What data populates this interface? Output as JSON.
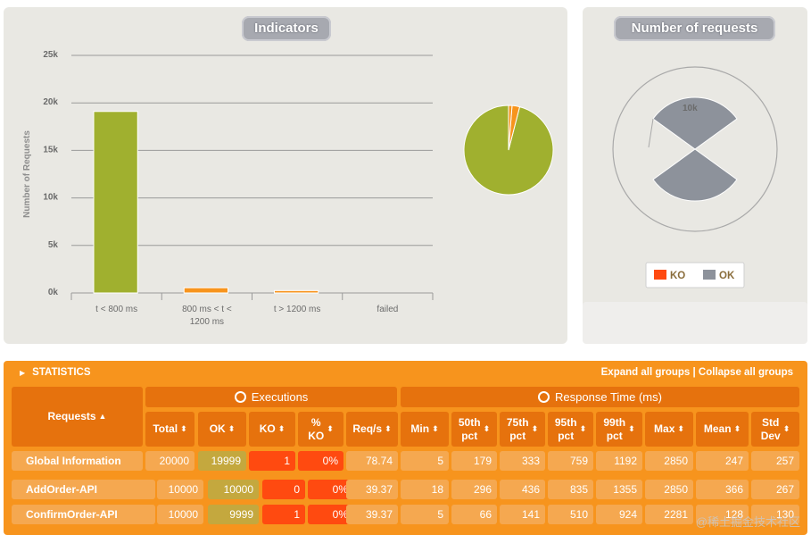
{
  "indicators": {
    "title": "Indicators",
    "chart_data": {
      "type": "bar",
      "ylabel": "Number of Requests",
      "yticks": [
        "0k",
        "5k",
        "10k",
        "15k",
        "20k",
        "25k"
      ],
      "ylim": [
        0,
        25000
      ],
      "categories": [
        "t < 800 ms",
        "800 ms < t < 1200 ms",
        "t > 1200 ms",
        "failed"
      ],
      "category_lines": [
        [
          "t < 800 ms"
        ],
        [
          "800 ms < t <",
          "1200 ms"
        ],
        [
          "t > 1200 ms"
        ],
        [
          "failed"
        ]
      ],
      "values": [
        19100,
        550,
        250,
        0
      ],
      "colors": [
        "#a0b02f",
        "#f7941d",
        "#f7941d",
        "#ff4a10"
      ],
      "pie": {
        "type": "pie",
        "values": [
          19100,
          550,
          250
        ],
        "colors": [
          "#a0b02f",
          "#f7941d",
          "#f7941d"
        ]
      }
    }
  },
  "requests_chart": {
    "title": "Number of requests",
    "chart_data": {
      "type": "pie",
      "radial_label": "10k",
      "legend": [
        {
          "name": "KO",
          "color": "#ff4a10"
        },
        {
          "name": "OK",
          "color": "#8d929b"
        }
      ]
    }
  },
  "statistics": {
    "title": "STATISTICS",
    "links": "Expand all groups | Collapse all groups",
    "group_executions": "Executions",
    "group_response": "Response Time (ms)",
    "col_requests": "Requests",
    "columns": [
      {
        "l1": "Total",
        "l2": ""
      },
      {
        "l1": "OK",
        "l2": ""
      },
      {
        "l1": "KO",
        "l2": ""
      },
      {
        "l1": "%",
        "l2": "KO"
      },
      {
        "l1": "Req/s",
        "l2": ""
      },
      {
        "l1": "Min",
        "l2": ""
      },
      {
        "l1": "50th",
        "l2": "pct"
      },
      {
        "l1": "75th",
        "l2": "pct"
      },
      {
        "l1": "95th",
        "l2": "pct"
      },
      {
        "l1": "99th",
        "l2": "pct"
      },
      {
        "l1": "Max",
        "l2": ""
      },
      {
        "l1": "Mean",
        "l2": ""
      },
      {
        "l1": "Std",
        "l2": "Dev"
      }
    ],
    "rows": [
      {
        "name": "Global Information",
        "cells": [
          "20000",
          "19999",
          "1",
          "0%",
          "78.74",
          "5",
          "179",
          "333",
          "759",
          "1192",
          "2850",
          "247",
          "257"
        ]
      },
      {
        "name": "AddOrder-API",
        "cells": [
          "10000",
          "10000",
          "0",
          "0%",
          "39.37",
          "18",
          "296",
          "436",
          "835",
          "1355",
          "2850",
          "366",
          "267"
        ]
      },
      {
        "name": "ConfirmOrder-API",
        "cells": [
          "10000",
          "9999",
          "1",
          "0%",
          "39.37",
          "5",
          "66",
          "141",
          "510",
          "924",
          "2281",
          "128",
          "130"
        ]
      }
    ],
    "watermark": "@稀土掘金技术社区"
  }
}
